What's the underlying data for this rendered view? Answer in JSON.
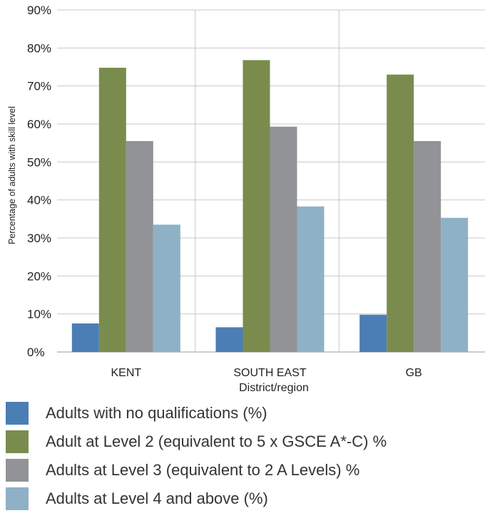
{
  "chart_data": {
    "type": "bar",
    "title": "",
    "xlabel": "District/region",
    "ylabel": "Percentage of adults with skill level",
    "ylim": [
      0,
      90
    ],
    "yticks": [
      0,
      10,
      20,
      30,
      40,
      50,
      60,
      70,
      80,
      90
    ],
    "ytick_suffix": "%",
    "grid": true,
    "legend_position": "bottom",
    "categories": [
      "KENT",
      "SOUTH EAST",
      "GB"
    ],
    "series": [
      {
        "name": "Adults with no qualifications (%)",
        "color": "#4a7eb5",
        "values": [
          7.5,
          6.5,
          9.8
        ]
      },
      {
        "name": "Adult at Level 2 (equivalent to 5 x GSCE A*-C) %",
        "color": "#7a8c4d",
        "values": [
          74.8,
          76.8,
          73.0
        ]
      },
      {
        "name": "Adults at Level 3 (equivalent to 2 A Levels) %",
        "color": "#929396",
        "values": [
          55.5,
          59.3,
          55.5
        ]
      },
      {
        "name": "Adults at Level 4 and above (%)",
        "color": "#8fb1c6",
        "values": [
          33.5,
          38.3,
          35.3
        ]
      }
    ]
  }
}
